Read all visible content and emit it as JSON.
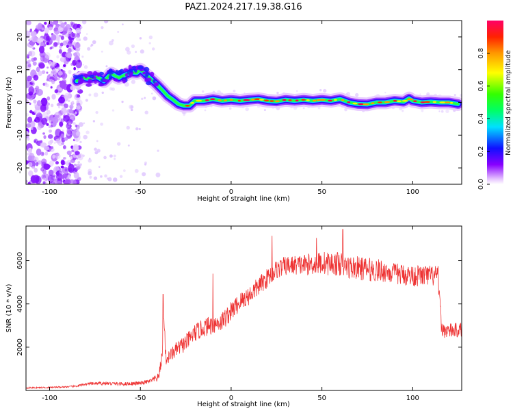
{
  "figure": {
    "title": "PAZ1.2024.217.19.38.G16"
  },
  "chart_data": [
    {
      "type": "heatmap",
      "xlabel": "Height of straight line (km)",
      "ylabel": "Frequency (Hz)",
      "xlim": [
        -113,
        127
      ],
      "ylim": [
        -25,
        25
      ],
      "x_ticks": [
        -100,
        -50,
        0,
        50,
        100
      ],
      "y_ticks": [
        -20,
        -10,
        0,
        10,
        20
      ],
      "colorbar": {
        "label": "Normalized spectral amplitude",
        "range": [
          0,
          1
        ],
        "ticks": [
          0.0,
          0.2,
          0.4,
          0.6,
          0.8
        ],
        "colormap": "gist_rainbow_r"
      },
      "ridge": {
        "x": [
          -85,
          -82,
          -78,
          -74,
          -70,
          -66,
          -62,
          -58,
          -55,
          -52,
          -50,
          -47,
          -44,
          -41,
          -38,
          -35,
          -32,
          -29,
          -26,
          -23,
          -20,
          -15,
          -10,
          -5,
          0,
          5,
          10,
          15,
          20,
          25,
          30,
          35,
          40,
          45,
          50,
          55,
          60,
          65,
          70,
          75,
          80,
          85,
          90,
          95,
          98,
          100,
          105,
          110,
          115,
          120,
          125
        ],
        "y": [
          6.5,
          7.5,
          7.2,
          7.8,
          6.5,
          8.8,
          7.5,
          8.5,
          9.2,
          9.0,
          10.0,
          8.5,
          7.0,
          5.5,
          3.8,
          2.0,
          0.8,
          -0.5,
          -1.0,
          -1.0,
          0.5,
          0.5,
          1.0,
          0.5,
          0.8,
          0.5,
          0.8,
          1.0,
          0.5,
          0.3,
          0.8,
          0.5,
          0.8,
          0.5,
          0.8,
          0.5,
          1.0,
          0.0,
          -0.5,
          -0.6,
          0.0,
          0.0,
          0.5,
          0.2,
          1.2,
          0.5,
          0.0,
          0.2,
          0.0,
          0.0,
          -0.5
        ]
      },
      "noise_region_x": [
        -113,
        -85
      ]
    },
    {
      "type": "line",
      "xlabel": "Height of straight line (km)",
      "ylabel": "SNR (10 * v/v)",
      "xlim": [
        -113,
        127
      ],
      "ylim": [
        0,
        7600
      ],
      "x_ticks": [
        -100,
        -50,
        0,
        50,
        100
      ],
      "y_ticks": [
        2000,
        4000,
        6000
      ],
      "line_color": "#ee3333",
      "series": [
        {
          "x": [
            -113,
            -100,
            -90,
            -85,
            -80,
            -70,
            -60,
            -50,
            -45,
            -40,
            -38,
            -37,
            -36,
            -35,
            -30,
            -25,
            -20,
            -15,
            -10,
            -5,
            0,
            5,
            10,
            15,
            20,
            25,
            30,
            35,
            40,
            45,
            50,
            55,
            60,
            65,
            70,
            75,
            80,
            85,
            90,
            95,
            100,
            105,
            110,
            114,
            116,
            120,
            127
          ],
          "y": [
            120,
            140,
            170,
            200,
            300,
            330,
            300,
            330,
            420,
            600,
            1600,
            3500,
            1500,
            1500,
            1900,
            2200,
            2650,
            2900,
            3050,
            3200,
            3650,
            4100,
            4400,
            4800,
            5200,
            5600,
            5750,
            5800,
            5800,
            5850,
            5900,
            5850,
            5850,
            5700,
            5650,
            5600,
            5550,
            5500,
            5400,
            5350,
            5300,
            5300,
            5300,
            5250,
            2800,
            2750,
            2800
          ],
          "jitter": [
            30,
            30,
            35,
            45,
            60,
            80,
            80,
            90,
            100,
            200,
            300,
            400,
            400,
            300,
            350,
            400,
            420,
            420,
            450,
            450,
            450,
            450,
            450,
            450,
            450,
            450,
            450,
            450,
            500,
            500,
            550,
            550,
            550,
            550,
            550,
            550,
            550,
            500,
            500,
            500,
            500,
            500,
            500,
            500,
            350,
            350,
            350
          ],
          "spikes": [
            {
              "x": -37.5,
              "y": 4450
            },
            {
              "x": -10,
              "y": 5400
            },
            {
              "x": 22.5,
              "y": 7150
            },
            {
              "x": 61.5,
              "y": 7450
            },
            {
              "x": 47,
              "y": 7050
            }
          ]
        }
      ]
    }
  ]
}
